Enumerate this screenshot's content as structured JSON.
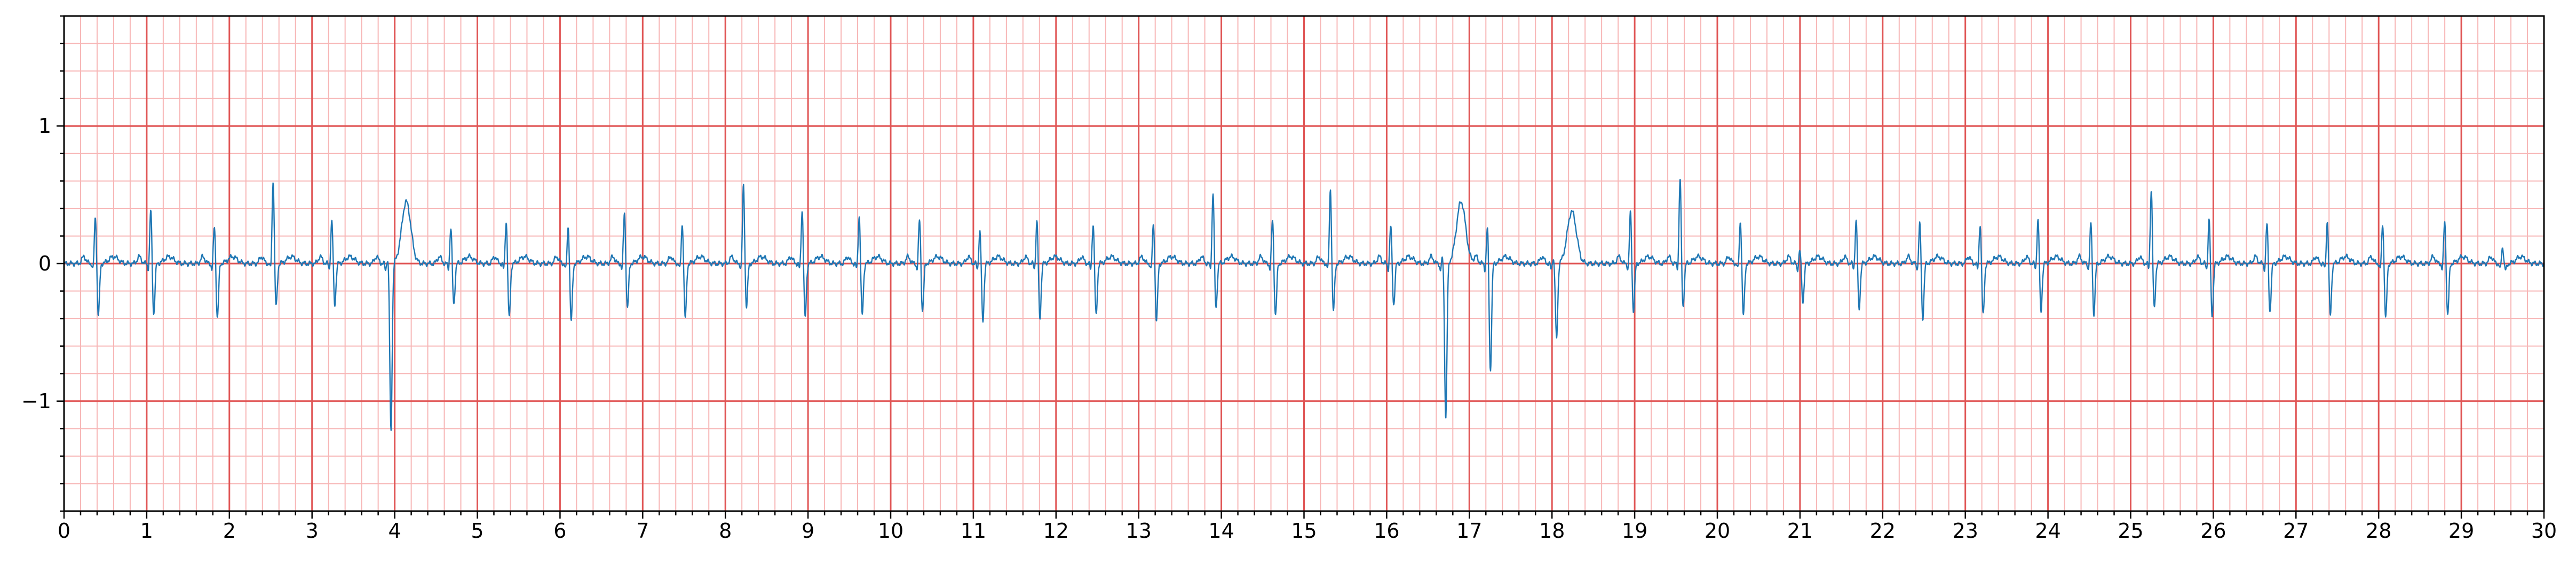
{
  "chart_data": {
    "type": "line",
    "title": "",
    "xlabel": "",
    "ylabel": "",
    "xlim": [
      0,
      30
    ],
    "ylim": [
      -1.8,
      1.8
    ],
    "x_ticks": [
      "0",
      "1",
      "2",
      "3",
      "4",
      "5",
      "6",
      "7",
      "8",
      "9",
      "10",
      "11",
      "12",
      "13",
      "14",
      "15",
      "16",
      "17",
      "18",
      "19",
      "20",
      "21",
      "22",
      "23",
      "24",
      "25",
      "26",
      "27",
      "28",
      "29",
      "30"
    ],
    "y_ticks": [
      {
        "value": 1,
        "label": "1"
      },
      {
        "value": 0,
        "label": "0"
      },
      {
        "value": -1,
        "label": "−1"
      }
    ],
    "grid": {
      "major_x": 1,
      "minor_x": 0.2,
      "major_y": 1,
      "minor_y": 0.2,
      "major_color": "#e05555",
      "minor_color": "#f7b6b6"
    },
    "colors": {
      "trace": "#1f77b4",
      "axis": "#000000"
    },
    "series": [
      {
        "beats": [
          {
            "t": 0.38,
            "r": 0.35,
            "s": -0.38
          },
          {
            "t": 1.05,
            "r": 0.4,
            "s": -0.37
          },
          {
            "t": 1.82,
            "r": 0.28,
            "s": -0.4
          },
          {
            "t": 2.53,
            "r": 0.62,
            "s": -0.32
          },
          {
            "t": 3.24,
            "r": 0.32,
            "s": -0.3
          },
          {
            "t": 3.92,
            "r": 0.05,
            "s": -1.22,
            "tw": 0.45
          },
          {
            "t": 4.68,
            "r": 0.27,
            "s": -0.3
          },
          {
            "t": 5.35,
            "r": 0.32,
            "s": -0.4
          },
          {
            "t": 6.1,
            "r": 0.28,
            "s": -0.42
          },
          {
            "t": 6.78,
            "r": 0.38,
            "s": -0.33
          },
          {
            "t": 7.48,
            "r": 0.3,
            "s": -0.4
          },
          {
            "t": 8.22,
            "r": 0.58,
            "s": -0.32
          },
          {
            "t": 8.93,
            "r": 0.4,
            "s": -0.4
          },
          {
            "t": 9.62,
            "r": 0.36,
            "s": -0.38
          },
          {
            "t": 10.35,
            "r": 0.33,
            "s": -0.35
          },
          {
            "t": 11.08,
            "r": 0.25,
            "s": -0.42
          },
          {
            "t": 11.77,
            "r": 0.32,
            "s": -0.4
          },
          {
            "t": 12.45,
            "r": 0.3,
            "s": -0.38
          },
          {
            "t": 13.18,
            "r": 0.3,
            "s": -0.42
          },
          {
            "t": 13.9,
            "r": 0.53,
            "s": -0.33
          },
          {
            "t": 14.62,
            "r": 0.33,
            "s": -0.38
          },
          {
            "t": 15.32,
            "r": 0.55,
            "s": -0.35
          },
          {
            "t": 16.05,
            "r": 0.28,
            "s": -0.3
          },
          {
            "t": 16.68,
            "r": 0.05,
            "s": -1.12,
            "tw": 0.45
          },
          {
            "t": 17.22,
            "r": 0.28,
            "s": -0.78
          },
          {
            "t": 18.02,
            "r": 0.05,
            "s": -0.55,
            "tw": 0.38
          },
          {
            "t": 18.95,
            "r": 0.38,
            "s": -0.35
          },
          {
            "t": 19.55,
            "r": 0.63,
            "s": -0.32
          },
          {
            "t": 20.28,
            "r": 0.32,
            "s": -0.38
          },
          {
            "t": 21.0,
            "r": 0.1,
            "s": -0.28
          },
          {
            "t": 21.68,
            "r": 0.32,
            "s": -0.33
          },
          {
            "t": 22.45,
            "r": 0.3,
            "s": -0.4
          },
          {
            "t": 23.18,
            "r": 0.3,
            "s": -0.38
          },
          {
            "t": 23.88,
            "r": 0.33,
            "s": -0.35
          },
          {
            "t": 24.52,
            "r": 0.3,
            "s": -0.37
          },
          {
            "t": 25.25,
            "r": 0.55,
            "s": -0.33
          },
          {
            "t": 25.95,
            "r": 0.33,
            "s": -0.38
          },
          {
            "t": 26.65,
            "r": 0.3,
            "s": -0.35
          },
          {
            "t": 27.38,
            "r": 0.32,
            "s": -0.38
          },
          {
            "t": 28.05,
            "r": 0.3,
            "s": -0.4
          },
          {
            "t": 28.8,
            "r": 0.32,
            "s": -0.38
          },
          {
            "t": 29.5,
            "r": 0.12,
            "s": -0.05
          }
        ]
      }
    ]
  }
}
